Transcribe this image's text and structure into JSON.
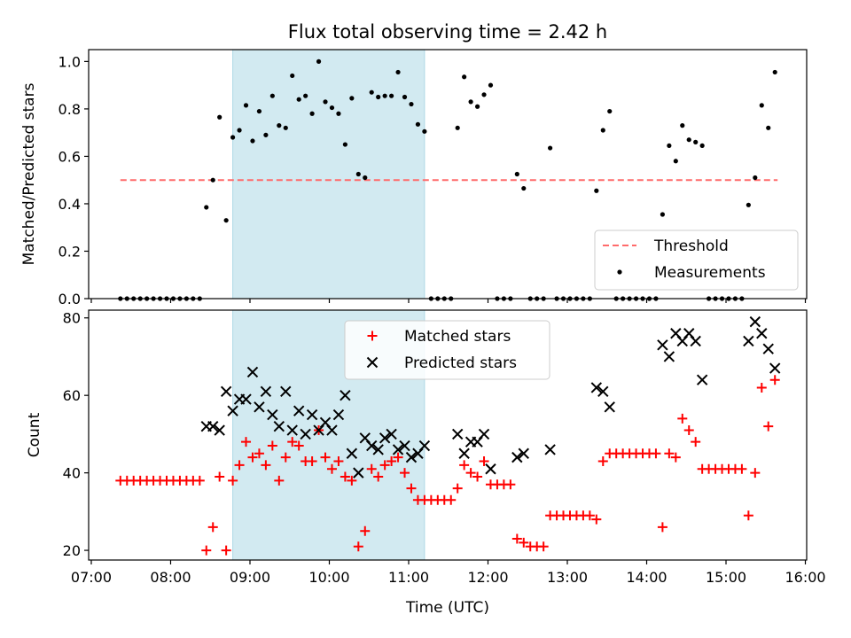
{
  "title": "Flux total observing time = 2.42 h",
  "xlabel": "Time (UTC)",
  "x_ticks": [
    "07:00",
    "08:00",
    "09:00",
    "10:00",
    "11:00",
    "12:00",
    "13:00",
    "14:00",
    "15:00",
    "16:00"
  ],
  "colors": {
    "shade": "#add8e6",
    "threshold": "#ff6b6b",
    "matched": "#ff0000",
    "predicted": "#000000",
    "measurements": "#000000"
  },
  "chart_data": [
    {
      "type": "scatter",
      "ylabel": "Matched/Predicted stars",
      "xlim": [
        "06:58",
        "16:01"
      ],
      "ylim": [
        0,
        1.05
      ],
      "y_ticks": [
        "0.0",
        "0.2",
        "0.4",
        "0.6",
        "0.8",
        "1.0"
      ],
      "shaded_span": [
        "08:47",
        "11:12"
      ],
      "legend": {
        "position": "lower-right",
        "entries": [
          "Threshold",
          "Measurements"
        ]
      },
      "threshold": {
        "name": "Threshold",
        "y": 0.5,
        "x_range": [
          "07:22",
          "15:39"
        ],
        "style": "dashed"
      },
      "series": [
        {
          "name": "Measurements",
          "marker": "dot",
          "points": [
            [
              "07:22",
              0
            ],
            [
              "07:27",
              0
            ],
            [
              "07:32",
              0
            ],
            [
              "07:37",
              0
            ],
            [
              "07:42",
              0
            ],
            [
              "07:47",
              0
            ],
            [
              "07:52",
              0
            ],
            [
              "07:57",
              0
            ],
            [
              "08:02",
              0
            ],
            [
              "08:07",
              0
            ],
            [
              "08:12",
              0
            ],
            [
              "08:17",
              0
            ],
            [
              "08:22",
              0
            ],
            [
              "08:27",
              0.385
            ],
            [
              "08:32",
              0.5
            ],
            [
              "08:37",
              0.765
            ],
            [
              "08:42",
              0.33
            ],
            [
              "08:47",
              0.68
            ],
            [
              "08:52",
              0.71
            ],
            [
              "08:57",
              0.815
            ],
            [
              "09:02",
              0.665
            ],
            [
              "09:07",
              0.79
            ],
            [
              "09:12",
              0.69
            ],
            [
              "09:17",
              0.855
            ],
            [
              "09:22",
              0.73
            ],
            [
              "09:27",
              0.72
            ],
            [
              "09:32",
              0.94
            ],
            [
              "09:37",
              0.84
            ],
            [
              "09:42",
              0.855
            ],
            [
              "09:47",
              0.78
            ],
            [
              "09:52",
              1.0
            ],
            [
              "09:57",
              0.83
            ],
            [
              "10:02",
              0.805
            ],
            [
              "10:07",
              0.78
            ],
            [
              "10:12",
              0.65
            ],
            [
              "10:17",
              0.845
            ],
            [
              "10:22",
              0.525
            ],
            [
              "10:27",
              0.51
            ],
            [
              "10:32",
              0.87
            ],
            [
              "10:37",
              0.85
            ],
            [
              "10:42",
              0.855
            ],
            [
              "10:47",
              0.855
            ],
            [
              "10:52",
              0.955
            ],
            [
              "10:57",
              0.85
            ],
            [
              "11:02",
              0.82
            ],
            [
              "11:07",
              0.735
            ],
            [
              "11:12",
              0.705
            ],
            [
              "11:17",
              0
            ],
            [
              "11:22",
              0
            ],
            [
              "11:27",
              0
            ],
            [
              "11:32",
              0
            ],
            [
              "11:37",
              0.72
            ],
            [
              "11:42",
              0.935
            ],
            [
              "11:47",
              0.83
            ],
            [
              "11:52",
              0.81
            ],
            [
              "11:57",
              0.86
            ],
            [
              "12:02",
              0.9
            ],
            [
              "12:07",
              0
            ],
            [
              "12:12",
              0
            ],
            [
              "12:17",
              0
            ],
            [
              "12:22",
              0.525
            ],
            [
              "12:27",
              0.465
            ],
            [
              "12:32",
              0
            ],
            [
              "12:37",
              0
            ],
            [
              "12:42",
              0
            ],
            [
              "12:47",
              0.635
            ],
            [
              "12:52",
              0
            ],
            [
              "12:57",
              0
            ],
            [
              "13:02",
              0
            ],
            [
              "13:07",
              0
            ],
            [
              "13:12",
              0
            ],
            [
              "13:17",
              0
            ],
            [
              "13:22",
              0.455
            ],
            [
              "13:27",
              0.71
            ],
            [
              "13:32",
              0.79
            ],
            [
              "13:37",
              0
            ],
            [
              "13:42",
              0
            ],
            [
              "13:47",
              0
            ],
            [
              "13:52",
              0
            ],
            [
              "13:57",
              0
            ],
            [
              "14:02",
              0
            ],
            [
              "14:07",
              0
            ],
            [
              "14:12",
              0.355
            ],
            [
              "14:17",
              0.645
            ],
            [
              "14:22",
              0.58
            ],
            [
              "14:27",
              0.73
            ],
            [
              "14:32",
              0.67
            ],
            [
              "14:37",
              0.66
            ],
            [
              "14:42",
              0.645
            ],
            [
              "14:47",
              0
            ],
            [
              "14:52",
              0
            ],
            [
              "14:57",
              0
            ],
            [
              "15:02",
              0
            ],
            [
              "15:07",
              0
            ],
            [
              "15:12",
              0
            ],
            [
              "15:17",
              0.395
            ],
            [
              "15:22",
              0.51
            ],
            [
              "15:27",
              0.815
            ],
            [
              "15:32",
              0.72
            ],
            [
              "15:37",
              0.955
            ]
          ]
        }
      ]
    },
    {
      "type": "scatter",
      "ylabel": "Count",
      "xlim": [
        "06:58",
        "16:01"
      ],
      "ylim": [
        17.5,
        82
      ],
      "y_ticks": [
        "20",
        "40",
        "60",
        "80"
      ],
      "shaded_span": [
        "08:47",
        "11:12"
      ],
      "legend": {
        "position": "top-center",
        "entries": [
          "Matched stars",
          "Predicted stars"
        ]
      },
      "series": [
        {
          "name": "Matched stars",
          "marker": "plus",
          "points": [
            [
              "07:22",
              38
            ],
            [
              "07:27",
              38
            ],
            [
              "07:32",
              38
            ],
            [
              "07:37",
              38
            ],
            [
              "07:42",
              38
            ],
            [
              "07:47",
              38
            ],
            [
              "07:52",
              38
            ],
            [
              "07:57",
              38
            ],
            [
              "08:02",
              38
            ],
            [
              "08:07",
              38
            ],
            [
              "08:12",
              38
            ],
            [
              "08:17",
              38
            ],
            [
              "08:22",
              38
            ],
            [
              "08:27",
              20
            ],
            [
              "08:32",
              26
            ],
            [
              "08:37",
              39
            ],
            [
              "08:42",
              20
            ],
            [
              "08:47",
              38
            ],
            [
              "08:52",
              42
            ],
            [
              "08:57",
              48
            ],
            [
              "09:02",
              44
            ],
            [
              "09:07",
              45
            ],
            [
              "09:12",
              42
            ],
            [
              "09:17",
              47
            ],
            [
              "09:22",
              38
            ],
            [
              "09:27",
              44
            ],
            [
              "09:32",
              48
            ],
            [
              "09:37",
              47
            ],
            [
              "09:42",
              43
            ],
            [
              "09:47",
              43
            ],
            [
              "09:52",
              51
            ],
            [
              "09:57",
              44
            ],
            [
              "10:02",
              41
            ],
            [
              "10:07",
              43
            ],
            [
              "10:12",
              39
            ],
            [
              "10:17",
              38
            ],
            [
              "10:22",
              21
            ],
            [
              "10:27",
              25
            ],
            [
              "10:32",
              41
            ],
            [
              "10:37",
              39
            ],
            [
              "10:42",
              42
            ],
            [
              "10:47",
              43
            ],
            [
              "10:52",
              44
            ],
            [
              "10:57",
              40
            ],
            [
              "11:02",
              36
            ],
            [
              "11:07",
              33
            ],
            [
              "11:12",
              33
            ],
            [
              "11:17",
              33
            ],
            [
              "11:22",
              33
            ],
            [
              "11:27",
              33
            ],
            [
              "11:32",
              33
            ],
            [
              "11:37",
              36
            ],
            [
              "11:42",
              42
            ],
            [
              "11:47",
              40
            ],
            [
              "11:52",
              39
            ],
            [
              "11:57",
              43
            ],
            [
              "12:02",
              37
            ],
            [
              "12:07",
              37
            ],
            [
              "12:12",
              37
            ],
            [
              "12:17",
              37
            ],
            [
              "12:22",
              23
            ],
            [
              "12:27",
              22
            ],
            [
              "12:32",
              21
            ],
            [
              "12:37",
              21
            ],
            [
              "12:42",
              21
            ],
            [
              "12:47",
              29
            ],
            [
              "12:52",
              29
            ],
            [
              "12:57",
              29
            ],
            [
              "13:02",
              29
            ],
            [
              "13:07",
              29
            ],
            [
              "13:12",
              29
            ],
            [
              "13:17",
              29
            ],
            [
              "13:22",
              28
            ],
            [
              "13:27",
              43
            ],
            [
              "13:32",
              45
            ],
            [
              "13:37",
              45
            ],
            [
              "13:42",
              45
            ],
            [
              "13:47",
              45
            ],
            [
              "13:52",
              45
            ],
            [
              "13:57",
              45
            ],
            [
              "14:02",
              45
            ],
            [
              "14:07",
              45
            ],
            [
              "14:12",
              26
            ],
            [
              "14:17",
              45
            ],
            [
              "14:22",
              44
            ],
            [
              "14:27",
              54
            ],
            [
              "14:32",
              51
            ],
            [
              "14:37",
              48
            ],
            [
              "14:42",
              41
            ],
            [
              "14:47",
              41
            ],
            [
              "14:52",
              41
            ],
            [
              "14:57",
              41
            ],
            [
              "15:02",
              41
            ],
            [
              "15:07",
              41
            ],
            [
              "15:12",
              41
            ],
            [
              "15:17",
              29
            ],
            [
              "15:22",
              40
            ],
            [
              "15:27",
              62
            ],
            [
              "15:32",
              52
            ],
            [
              "15:37",
              64
            ]
          ]
        },
        {
          "name": "Predicted stars",
          "marker": "x",
          "points": [
            [
              "08:27",
              52
            ],
            [
              "08:32",
              52
            ],
            [
              "08:37",
              51
            ],
            [
              "08:42",
              61
            ],
            [
              "08:47",
              56
            ],
            [
              "08:52",
              59
            ],
            [
              "08:57",
              59
            ],
            [
              "09:02",
              66
            ],
            [
              "09:07",
              57
            ],
            [
              "09:12",
              61
            ],
            [
              "09:17",
              55
            ],
            [
              "09:22",
              52
            ],
            [
              "09:27",
              61
            ],
            [
              "09:32",
              51
            ],
            [
              "09:37",
              56
            ],
            [
              "09:42",
              50
            ],
            [
              "09:47",
              55
            ],
            [
              "09:52",
              51
            ],
            [
              "09:57",
              53
            ],
            [
              "10:02",
              51
            ],
            [
              "10:07",
              55
            ],
            [
              "10:12",
              60
            ],
            [
              "10:17",
              45
            ],
            [
              "10:22",
              40
            ],
            [
              "10:27",
              49
            ],
            [
              "10:32",
              47
            ],
            [
              "10:37",
              46
            ],
            [
              "10:42",
              49
            ],
            [
              "10:47",
              50
            ],
            [
              "10:52",
              46
            ],
            [
              "10:57",
              47
            ],
            [
              "11:02",
              44
            ],
            [
              "11:07",
              45
            ],
            [
              "11:12",
              47
            ],
            [
              "11:37",
              50
            ],
            [
              "11:42",
              45
            ],
            [
              "11:47",
              48
            ],
            [
              "11:52",
              48
            ],
            [
              "11:57",
              50
            ],
            [
              "12:02",
              41
            ],
            [
              "12:22",
              44
            ],
            [
              "12:27",
              45
            ],
            [
              "12:47",
              46
            ],
            [
              "13:22",
              62
            ],
            [
              "13:27",
              61
            ],
            [
              "13:32",
              57
            ],
            [
              "14:12",
              73
            ],
            [
              "14:17",
              70
            ],
            [
              "14:22",
              76
            ],
            [
              "14:27",
              74
            ],
            [
              "14:32",
              76
            ],
            [
              "14:37",
              74
            ],
            [
              "14:42",
              64
            ],
            [
              "15:17",
              74
            ],
            [
              "15:22",
              79
            ],
            [
              "15:27",
              76
            ],
            [
              "15:32",
              72
            ],
            [
              "15:37",
              67
            ]
          ]
        }
      ]
    }
  ]
}
